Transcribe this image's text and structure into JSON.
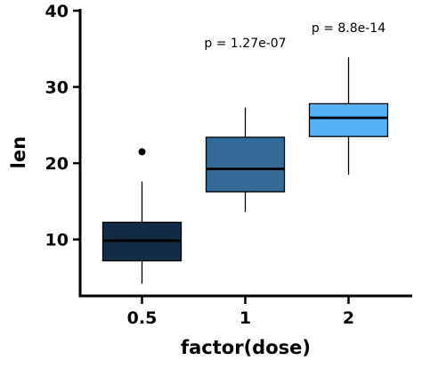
{
  "chart_data": {
    "type": "box",
    "xlabel": "factor(dose)",
    "ylabel": "len",
    "ylim": [
      0,
      40
    ],
    "y_ticks": [
      10,
      20,
      30,
      40
    ],
    "categories": [
      "0.5",
      "1",
      "2"
    ],
    "boxes": [
      {
        "category": "0.5",
        "min": 4.2,
        "q1": 7.2,
        "median": 9.85,
        "q3": 12.25,
        "max": 17.6,
        "outliers": [
          21.5
        ],
        "color": "#132b43"
      },
      {
        "category": "1",
        "min": 13.6,
        "q1": 16.25,
        "median": 19.25,
        "q3": 23.4,
        "max": 27.3,
        "outliers": [],
        "color": "#336a98"
      },
      {
        "category": "2",
        "min": 18.5,
        "q1": 23.5,
        "median": 25.95,
        "q3": 27.8,
        "max": 33.9,
        "outliers": [],
        "color": "#56b1f7"
      }
    ],
    "annotations": [
      {
        "text": "p = 1.27e-07",
        "x": "1",
        "y": 35.2
      },
      {
        "text": "p = 8.8e-14",
        "x": "2",
        "y": 37.2
      }
    ]
  }
}
